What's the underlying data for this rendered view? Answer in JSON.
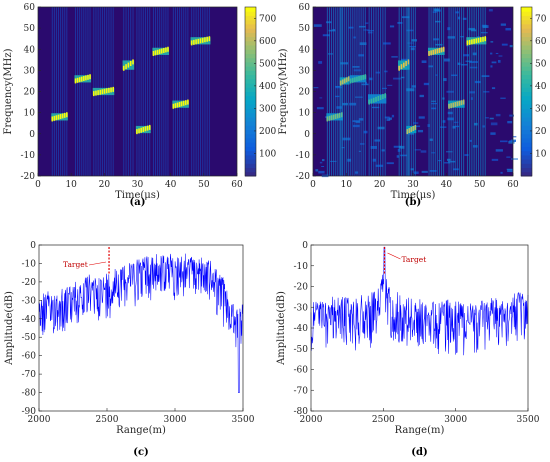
{
  "chart_data": [
    {
      "panel": "(a)",
      "type": "heatmap",
      "xlabel": "Time(μs)",
      "ylabel": "Frequency(MHz)",
      "xlim": [
        0,
        60
      ],
      "ylim": [
        -20,
        60
      ],
      "x_ticks": [
        "0",
        "10",
        "20",
        "30",
        "40",
        "50",
        "60"
      ],
      "y_ticks": [
        "-20",
        "-10",
        "0",
        "10",
        "20",
        "30",
        "40",
        "50",
        "60"
      ],
      "colorbar": {
        "range": [
          0,
          750
        ],
        "ticks": [
          "100",
          "200",
          "300",
          "400",
          "500",
          "600",
          "700"
        ]
      },
      "segments": [
        {
          "t": [
            4,
            9
          ],
          "f": [
            7,
            9
          ],
          "level": 1
        },
        {
          "t": [
            11,
            16
          ],
          "f": [
            25,
            27
          ],
          "level": 1
        },
        {
          "t": [
            16.5,
            23
          ],
          "f": [
            19,
            21
          ],
          "level": 1
        },
        {
          "t": [
            25.5,
            29
          ],
          "f": [
            31,
            34
          ],
          "level": 1
        },
        {
          "t": [
            29.5,
            34
          ],
          "f": [
            1,
            3
          ],
          "level": 1
        },
        {
          "t": [
            34.5,
            39.5
          ],
          "f": [
            38,
            40
          ],
          "level": 1
        },
        {
          "t": [
            40.5,
            45.5
          ],
          "f": [
            13,
            15
          ],
          "level": 1
        },
        {
          "t": [
            46,
            52
          ],
          "f": [
            43,
            45
          ],
          "level": 1
        }
      ]
    },
    {
      "panel": "(b)",
      "type": "heatmap",
      "xlabel": "Time(μs)",
      "ylabel": "Frequency(MHz)",
      "xlim": [
        0,
        60
      ],
      "ylim": [
        -20,
        60
      ],
      "x_ticks": [
        "0",
        "10",
        "20",
        "30",
        "40",
        "50",
        "60"
      ],
      "y_ticks": [
        "-20",
        "-10",
        "0",
        "10",
        "20",
        "30",
        "40",
        "50",
        "60"
      ],
      "colorbar": {
        "range": [
          0,
          75
        ],
        "ticks": [
          "10",
          "20",
          "30",
          "40",
          "50",
          "60",
          "70"
        ]
      },
      "segments": [
        {
          "t": [
            4,
            9
          ],
          "f": [
            7,
            9
          ],
          "level": 0.7
        },
        {
          "t": [
            8,
            11
          ],
          "f": [
            24,
            26
          ],
          "level": 0.8
        },
        {
          "t": [
            11,
            16
          ],
          "f": [
            25,
            27
          ],
          "level": 0.6
        },
        {
          "t": [
            16.5,
            22
          ],
          "f": [
            15,
            18
          ],
          "level": 0.6
        },
        {
          "t": [
            25.5,
            29
          ],
          "f": [
            31,
            34
          ],
          "level": 0.9
        },
        {
          "t": [
            28,
            31
          ],
          "f": [
            1,
            3
          ],
          "level": 0.8
        },
        {
          "t": [
            34.5,
            39.5
          ],
          "f": [
            38,
            40
          ],
          "level": 0.9
        },
        {
          "t": [
            40.5,
            45.5
          ],
          "f": [
            13,
            15
          ],
          "level": 0.8
        },
        {
          "t": [
            46,
            52
          ],
          "f": [
            43,
            45
          ],
          "level": 1.0
        }
      ]
    },
    {
      "panel": "(c)",
      "type": "line",
      "xlabel": "Range(m)",
      "ylabel": "Amplitude(dB)",
      "xlim": [
        2000,
        3500
      ],
      "ylim": [
        -90,
        0
      ],
      "x_ticks": [
        "2000",
        "2500",
        "3000",
        "3500"
      ],
      "y_ticks": [
        "0",
        "-10",
        "-20",
        "-30",
        "-40",
        "-50",
        "-60",
        "-70",
        "-80",
        "-90"
      ],
      "target": {
        "label": "Target",
        "range": 2515
      },
      "envelope": {
        "x": [
          2000,
          2050,
          2100,
          2150,
          2200,
          2250,
          2300,
          2350,
          2400,
          2450,
          2500,
          2550,
          2600,
          2650,
          2700,
          2750,
          2800,
          2850,
          2900,
          2950,
          3000,
          3050,
          3100,
          3150,
          3200,
          3250,
          3300,
          3350,
          3400,
          3450,
          3500
        ],
        "y": [
          -32,
          -31,
          -30,
          -29,
          -27,
          -26,
          -24,
          -22,
          -21,
          -22,
          -20,
          -17,
          -15,
          -13,
          -12,
          -11,
          -11,
          -10,
          -10,
          -10,
          -10,
          -11,
          -10,
          -10,
          -11,
          -13,
          -17,
          -22,
          -33,
          -38,
          -37
        ]
      }
    },
    {
      "panel": "(d)",
      "type": "line",
      "xlabel": "Range(m)",
      "ylabel": "Amplitude(dB)",
      "xlim": [
        2000,
        3500
      ],
      "ylim": [
        -80,
        0
      ],
      "x_ticks": [
        "2000",
        "2500",
        "3000",
        "3500"
      ],
      "y_ticks": [
        "0",
        "-10",
        "-20",
        "-30",
        "-40",
        "-50",
        "-60",
        "-70",
        "-80"
      ],
      "target": {
        "label": "Target",
        "range": 2508
      },
      "envelope": {
        "x": [
          2000,
          2100,
          2200,
          2300,
          2400,
          2450,
          2480,
          2500,
          2520,
          2550,
          2600,
          2700,
          2800,
          2900,
          3000,
          3100,
          3200,
          3300,
          3400,
          3500
        ],
        "y": [
          -31,
          -31,
          -30,
          -30,
          -29,
          -26,
          -22,
          -18,
          -20,
          -25,
          -28,
          -31,
          -32,
          -31,
          -32,
          -32,
          -31,
          -30,
          -29,
          -27
        ]
      }
    }
  ],
  "colors": {
    "line": "#0000ff",
    "target": "#e00000",
    "background": "#2a0a6e"
  }
}
